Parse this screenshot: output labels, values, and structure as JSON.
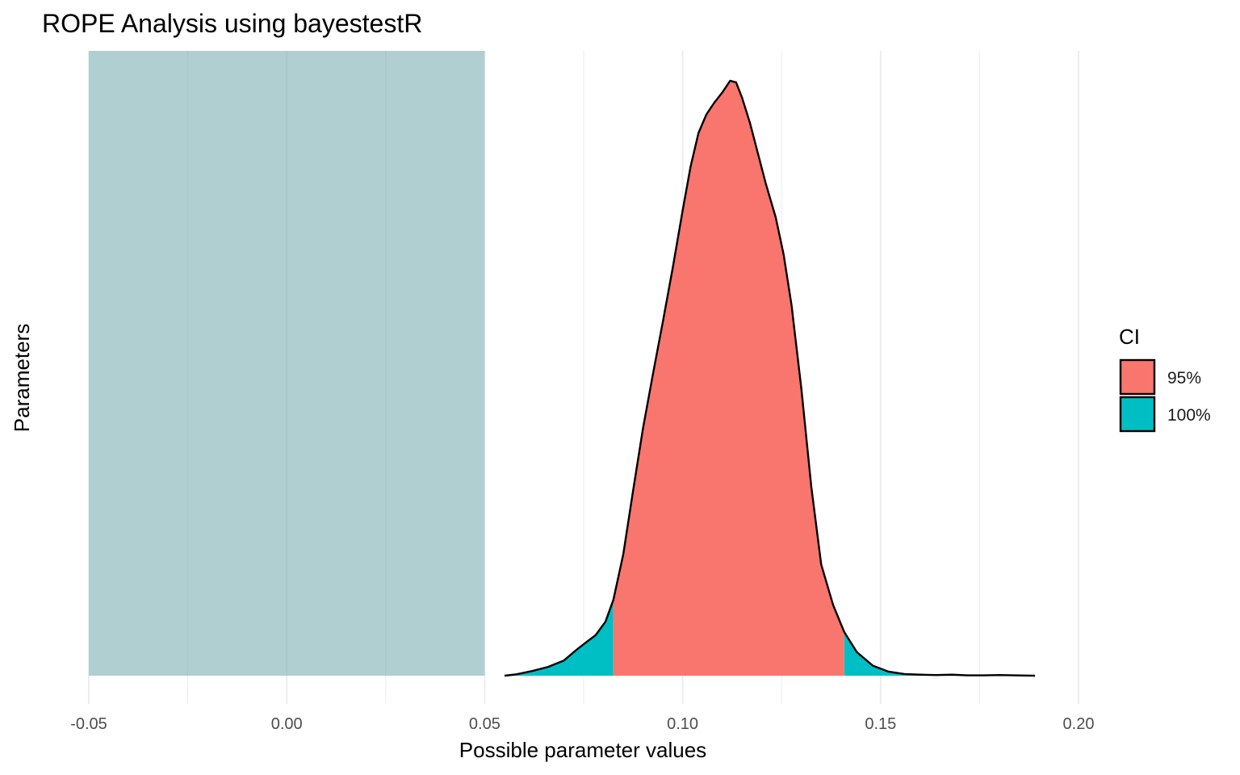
{
  "chart_data": {
    "type": "area",
    "title": "ROPE Analysis using bayestestR",
    "xlabel": "Possible parameter values",
    "ylabel": "Parameters",
    "xlim": [
      -0.05,
      0.2
    ],
    "x_ticks": [
      -0.05,
      0.0,
      0.05,
      0.1,
      0.15,
      0.2
    ],
    "x_tick_labels": [
      "-0.05",
      "0.00",
      "0.05",
      "0.10",
      "0.15",
      "0.20"
    ],
    "grid": true,
    "rope": {
      "low": -0.05,
      "high": 0.05,
      "color": "#b0cfd1"
    },
    "legend": {
      "title": "CI",
      "position": "right",
      "entries": [
        {
          "label": "95%",
          "color": "#f8766d"
        },
        {
          "label": "100%",
          "color": "#00bfc4"
        }
      ]
    },
    "ci_95": [
      0.0825,
      0.1408
    ],
    "density": {
      "x": [
        0.055,
        0.058,
        0.062,
        0.066,
        0.07,
        0.073,
        0.0755,
        0.078,
        0.0805,
        0.0825,
        0.085,
        0.0875,
        0.09,
        0.0925,
        0.095,
        0.0975,
        0.1,
        0.102,
        0.104,
        0.106,
        0.108,
        0.11,
        0.112,
        0.1135,
        0.115,
        0.117,
        0.119,
        0.121,
        0.1235,
        0.1255,
        0.1275,
        0.13,
        0.1325,
        0.135,
        0.138,
        0.1408,
        0.144,
        0.148,
        0.152,
        0.156,
        0.16,
        0.164,
        0.168,
        0.172,
        0.176,
        0.18,
        0.184,
        0.189
      ],
      "y": [
        0.0,
        0.004,
        0.014,
        0.026,
        0.045,
        0.075,
        0.098,
        0.12,
        0.16,
        0.225,
        0.36,
        0.55,
        0.735,
        0.895,
        1.05,
        1.21,
        1.38,
        1.51,
        1.61,
        1.665,
        1.7,
        1.73,
        1.765,
        1.76,
        1.715,
        1.64,
        1.55,
        1.46,
        1.36,
        1.25,
        1.1,
        0.85,
        0.56,
        0.33,
        0.21,
        0.13,
        0.07,
        0.03,
        0.012,
        0.005,
        0.003,
        0.002,
        0.003,
        0.001,
        0.001,
        0.002,
        0.001,
        0.0
      ]
    }
  }
}
